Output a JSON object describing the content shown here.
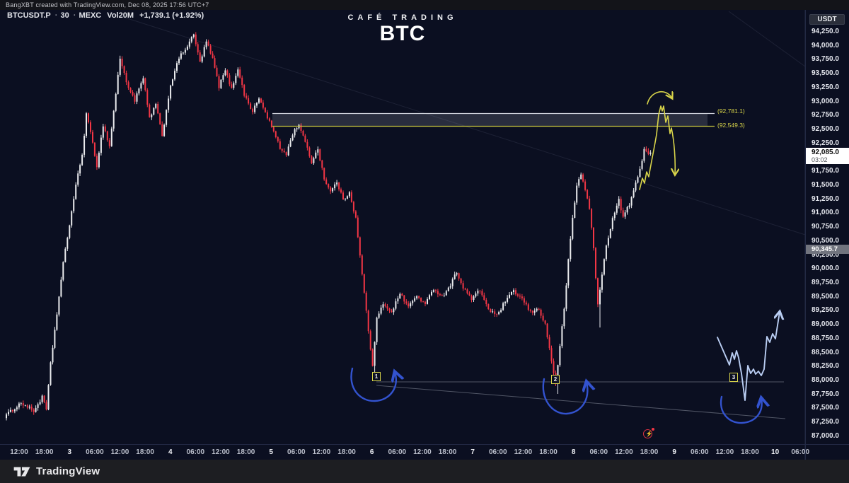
{
  "attribution": {
    "text": "BangXBT created with TradingView.com, Dec 08, 2025 17:56 UTC+7"
  },
  "legend": {
    "symbol": "BTCUSDT.P",
    "interval": "30",
    "exchange": "MEXC",
    "volume": "Vol20M",
    "change": "+1,739.1 (+1.92%)"
  },
  "watermark": {
    "line1": "CAFÉ TRADING",
    "line2": "BTC"
  },
  "axis": {
    "currency_button": "USDT",
    "current_price": "92,085.0",
    "countdown": "03:02",
    "secondary_price": "90,345.7",
    "price_ticks": [
      "94,250.0",
      "94,000.0",
      "93,750.0",
      "93,500.0",
      "93,250.0",
      "93,000.0",
      "92,750.0",
      "92,500.0",
      "92,250.0",
      "92,000.0",
      "91,750.0",
      "91,500.0",
      "91,250.0",
      "91,000.0",
      "90,750.0",
      "90,500.0",
      "90,250.0",
      "90,000.0",
      "89,750.0",
      "89,500.0",
      "89,250.0",
      "89,000.0",
      "88,750.0",
      "88,500.0",
      "88,250.0",
      "88,000.0",
      "87,750.0",
      "87,500.0",
      "87,250.0",
      "87,000.0"
    ]
  },
  "time_axis": {
    "labels": [
      [
        "12:00",
        0
      ],
      [
        "18:00",
        0
      ],
      [
        "3",
        1
      ],
      [
        "06:00",
        0
      ],
      [
        "12:00",
        0
      ],
      [
        "18:00",
        0
      ],
      [
        "4",
        1
      ],
      [
        "06:00",
        0
      ],
      [
        "12:00",
        0
      ],
      [
        "18:00",
        0
      ],
      [
        "5",
        1
      ],
      [
        "06:00",
        0
      ],
      [
        "12:00",
        0
      ],
      [
        "18:00",
        0
      ],
      [
        "6",
        1
      ],
      [
        "06:00",
        0
      ],
      [
        "12:00",
        0
      ],
      [
        "18:00",
        0
      ],
      [
        "7",
        1
      ],
      [
        "06:00",
        0
      ],
      [
        "12:00",
        0
      ],
      [
        "18:00",
        0
      ],
      [
        "8",
        1
      ],
      [
        "06:00",
        0
      ],
      [
        "12:00",
        0
      ],
      [
        "18:00",
        0
      ],
      [
        "9",
        1
      ],
      [
        "06:00",
        0
      ],
      [
        "12:00",
        0
      ],
      [
        "18:00",
        0
      ],
      [
        "10",
        1
      ],
      [
        "06:00",
        0
      ]
    ]
  },
  "levels": {
    "upper_label": "(92,781.1)",
    "lower_label": "(92,549.3)"
  },
  "markers": [
    {
      "label": "1"
    },
    {
      "label": "2"
    },
    {
      "label": "3"
    }
  ],
  "footer": {
    "brand": "TradingView"
  },
  "colors": {
    "background": "#0b0f21",
    "candle_up": "#eaebee",
    "candle_down": "#f23645",
    "annotation_yellow": "#d8d44a",
    "zone_top_line": "#cdd0da",
    "annotation_blue": "#3353cf",
    "projection_blue": "#b9cdf2",
    "axis_text": "#e6e8ef",
    "event_red": "#f23645"
  },
  "chart_data": {
    "type": "candlestick",
    "title": "BTC",
    "subtitle": "CAFÉ TRADING",
    "symbol": "BTCUSDT.P",
    "exchange": "MEXC",
    "interval_minutes": 30,
    "legend_change": "+1,739.1 (+1.92%)",
    "current_price": 92085.0,
    "secondary_price_marker": 90345.7,
    "price_axis": {
      "min": 87000,
      "max": 94250,
      "tick_step": 250,
      "unit": "USDT"
    },
    "x_axis_days": [
      "3",
      "4",
      "5",
      "6",
      "7",
      "8",
      "9",
      "10"
    ],
    "grid": "off",
    "key_levels": {
      "resistance_zone_top": 92781.1,
      "resistance_zone_bottom": 92549.3
    },
    "anchors": [
      [
        0,
        87350
      ],
      [
        8,
        87600
      ],
      [
        14,
        87450
      ],
      [
        18,
        87700
      ],
      [
        20,
        87480
      ],
      [
        22,
        88300
      ],
      [
        25,
        89200
      ],
      [
        28,
        90100
      ],
      [
        31,
        90800
      ],
      [
        34,
        91500
      ],
      [
        37,
        92050
      ],
      [
        39,
        92780
      ],
      [
        42,
        92250
      ],
      [
        44,
        91850
      ],
      [
        47,
        92580
      ],
      [
        50,
        92200
      ],
      [
        55,
        93780
      ],
      [
        58,
        93350
      ],
      [
        62,
        93020
      ],
      [
        66,
        93420
      ],
      [
        69,
        92700
      ],
      [
        72,
        92950
      ],
      [
        75,
        92380
      ],
      [
        79,
        93300
      ],
      [
        83,
        93780
      ],
      [
        87,
        94000
      ],
      [
        90,
        94200
      ],
      [
        93,
        93700
      ],
      [
        96,
        94080
      ],
      [
        99,
        93760
      ],
      [
        102,
        93270
      ],
      [
        105,
        93560
      ],
      [
        108,
        93220
      ],
      [
        111,
        93600
      ],
      [
        114,
        93120
      ],
      [
        118,
        92820
      ],
      [
        121,
        93060
      ],
      [
        125,
        92720
      ],
      [
        128,
        92460
      ],
      [
        131,
        92160
      ],
      [
        134,
        92060
      ],
      [
        137,
        92420
      ],
      [
        140,
        92600
      ],
      [
        143,
        92260
      ],
      [
        146,
        91920
      ],
      [
        149,
        92150
      ],
      [
        152,
        91620
      ],
      [
        155,
        91380
      ],
      [
        158,
        91560
      ],
      [
        161,
        91230
      ],
      [
        164,
        91380
      ],
      [
        167,
        90900
      ],
      [
        170,
        89900
      ],
      [
        173,
        88900
      ],
      [
        175,
        88250
      ],
      [
        177,
        89100
      ],
      [
        180,
        89380
      ],
      [
        184,
        89230
      ],
      [
        188,
        89560
      ],
      [
        192,
        89320
      ],
      [
        196,
        89520
      ],
      [
        200,
        89360
      ],
      [
        204,
        89650
      ],
      [
        208,
        89500
      ],
      [
        212,
        89720
      ],
      [
        215,
        89950
      ],
      [
        218,
        89660
      ],
      [
        222,
        89460
      ],
      [
        226,
        89620
      ],
      [
        230,
        89280
      ],
      [
        234,
        89160
      ],
      [
        238,
        89420
      ],
      [
        242,
        89600
      ],
      [
        246,
        89460
      ],
      [
        250,
        89220
      ],
      [
        254,
        89280
      ],
      [
        257,
        89000
      ],
      [
        260,
        88350
      ],
      [
        262,
        87950
      ],
      [
        264,
        88600
      ],
      [
        266,
        89300
      ],
      [
        268,
        90150
      ],
      [
        270,
        90900
      ],
      [
        272,
        91500
      ],
      [
        274,
        91700
      ],
      [
        276,
        91420
      ],
      [
        278,
        91100
      ],
      [
        280,
        90350
      ],
      [
        282,
        89350
      ],
      [
        284,
        89900
      ],
      [
        286,
        90420
      ],
      [
        289,
        90900
      ],
      [
        292,
        91230
      ],
      [
        294,
        90930
      ],
      [
        297,
        91160
      ],
      [
        300,
        91520
      ],
      [
        302,
        91780
      ],
      [
        304,
        92150
      ],
      [
        306,
        92085
      ]
    ],
    "spikes": {
      "175": {
        "low": 88060
      },
      "262": {
        "low": 87760
      },
      "282": {
        "low": 88950
      },
      "90": {
        "high": 94245
      }
    },
    "annotations": {
      "resistance_zone": {
        "top": 92781.1,
        "bottom": 92549.3,
        "label_top": "(92,781.1)",
        "label_bottom": "(92,549.3)"
      },
      "yellow_scenario": "hand-drawn arrows projecting a test of the 92,549-92,781 zone then rejection lower",
      "numbered_lows": [
        {
          "label": "1",
          "approx_price": 88100
        },
        {
          "label": "2",
          "approx_price": 87900
        },
        {
          "label": "3",
          "approx_price": 88000,
          "note": "projected"
        }
      ],
      "blue_projection": "light-blue path projecting a third dip near the descending low trendline then a rally"
    }
  }
}
